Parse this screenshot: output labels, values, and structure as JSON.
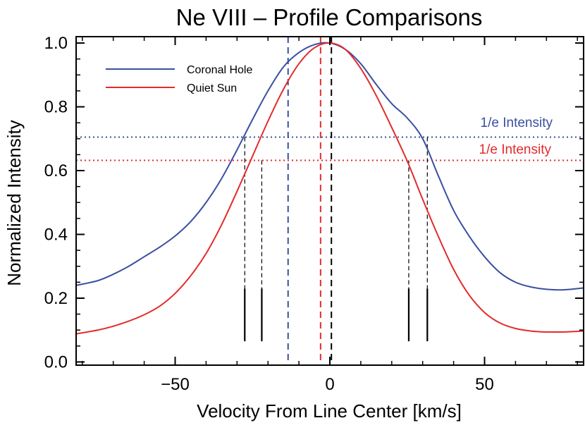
{
  "chart_data": {
    "type": "line",
    "title": "Ne VIII – Profile Comparisons",
    "xlabel": "Velocity From Line Center [km/s]",
    "ylabel": "Normalized Intensity",
    "xlim": [
      -82,
      82
    ],
    "ylim": [
      -0.01,
      1.02
    ],
    "xticks": [
      -50,
      0,
      50
    ],
    "yticks": [
      0.0,
      0.2,
      0.4,
      0.6,
      0.8,
      1.0
    ],
    "xticklabels": [
      "−50",
      "0",
      "50"
    ],
    "yticklabels": [
      "0.0",
      "0.2",
      "0.4",
      "0.6",
      "0.8",
      "1.0"
    ],
    "grid": false,
    "legend_position": "top-left",
    "series": [
      {
        "name": "Coronal Hole",
        "color": "#3a4fa0",
        "x": [
          -82,
          -75,
          -70,
          -65,
          -60,
          -55,
          -50,
          -45,
          -40,
          -35,
          -30,
          -25,
          -20,
          -15,
          -10,
          -5,
          0,
          5,
          10,
          15,
          20,
          25,
          30,
          35,
          40,
          45,
          50,
          55,
          60,
          65,
          70,
          75,
          78,
          82
        ],
        "y": [
          0.24,
          0.255,
          0.275,
          0.3,
          0.33,
          0.36,
          0.395,
          0.44,
          0.5,
          0.575,
          0.665,
          0.76,
          0.85,
          0.925,
          0.97,
          0.995,
          1.0,
          0.98,
          0.935,
          0.87,
          0.81,
          0.765,
          0.7,
          0.585,
          0.475,
          0.395,
          0.33,
          0.28,
          0.25,
          0.235,
          0.228,
          0.226,
          0.228,
          0.232
        ]
      },
      {
        "name": "Quiet Sun",
        "color": "#e22b2b",
        "x": [
          -82,
          -75,
          -70,
          -65,
          -60,
          -55,
          -50,
          -45,
          -40,
          -35,
          -30,
          -25,
          -20,
          -15,
          -10,
          -5,
          0,
          5,
          10,
          15,
          20,
          25,
          30,
          35,
          40,
          45,
          50,
          55,
          60,
          65,
          70,
          75,
          78,
          82
        ],
        "y": [
          0.088,
          0.1,
          0.112,
          0.128,
          0.148,
          0.175,
          0.215,
          0.27,
          0.34,
          0.43,
          0.535,
          0.645,
          0.755,
          0.855,
          0.935,
          0.985,
          1.0,
          0.98,
          0.92,
          0.835,
          0.735,
          0.63,
          0.51,
          0.395,
          0.29,
          0.21,
          0.155,
          0.122,
          0.105,
          0.097,
          0.094,
          0.094,
          0.095,
          0.097
        ]
      }
    ],
    "hlines": [
      {
        "y": 0.705,
        "color": "#3a4fa0",
        "style": "dotted",
        "label": "1/e Intensity"
      },
      {
        "y": 0.632,
        "color": "#e22b2b",
        "style": "dotted",
        "label": "1/e Intensity"
      }
    ],
    "vlines_full": [
      {
        "x": -13.5,
        "color": "#3a4fa0",
        "style": "dashed"
      },
      {
        "x": -3,
        "color": "#e22b2b",
        "style": "dashed"
      },
      {
        "x": 0.5,
        "color": "#000000",
        "style": "dashed"
      }
    ],
    "width_markers": [
      {
        "x": -27.5,
        "y_top": 0.705,
        "y_solid_top": 0.23,
        "y_bottom": 0.065
      },
      {
        "x": -22,
        "y_top": 0.632,
        "y_solid_top": 0.23,
        "y_bottom": 0.065
      },
      {
        "x": 25.5,
        "y_top": 0.632,
        "y_solid_top": 0.23,
        "y_bottom": 0.065
      },
      {
        "x": 31.5,
        "y_top": 0.705,
        "y_solid_top": 0.23,
        "y_bottom": 0.065
      }
    ]
  }
}
